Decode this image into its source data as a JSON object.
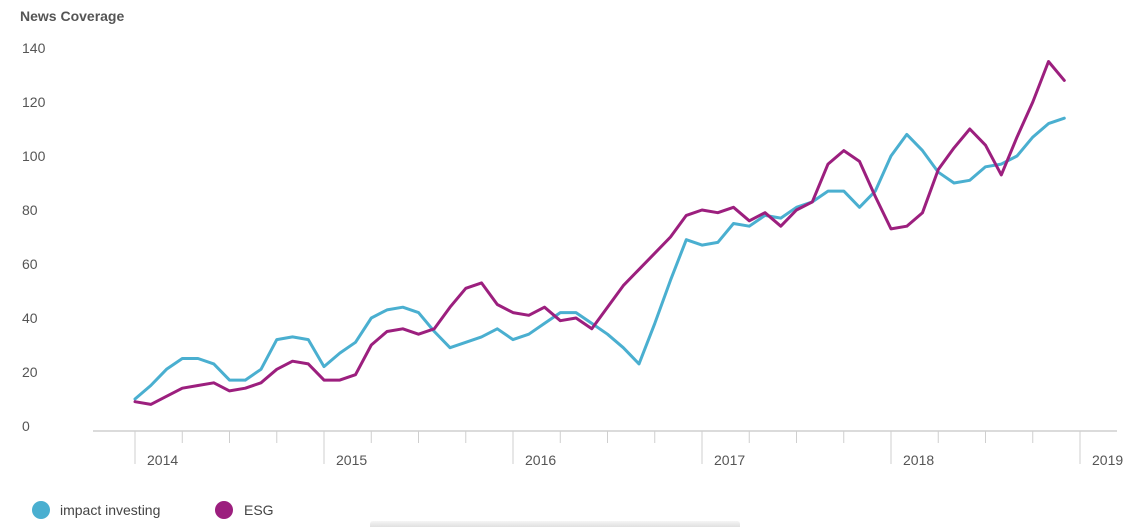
{
  "chart_data": {
    "type": "line",
    "ylabel": "News Coverage",
    "xlabel": "",
    "ylim": [
      0,
      140
    ],
    "yticks": [
      0,
      20,
      40,
      60,
      80,
      100,
      120,
      140
    ],
    "xlim": [
      2013.91,
      2019.0
    ],
    "xticks": [
      "2014",
      "2015",
      "2016",
      "2017",
      "2018",
      "2019"
    ],
    "grid": false,
    "legend_position": "bottom-left",
    "series": [
      {
        "name": "impact investing",
        "color": "#4aafd0",
        "x": [
          "2014-01",
          "2014-02",
          "2014-03",
          "2014-04",
          "2014-05",
          "2014-06",
          "2014-07",
          "2014-08",
          "2014-09",
          "2014-10",
          "2014-11",
          "2014-12",
          "2015-01",
          "2015-02",
          "2015-03",
          "2015-04",
          "2015-05",
          "2015-06",
          "2015-07",
          "2015-08",
          "2015-09",
          "2015-10",
          "2015-11",
          "2015-12",
          "2016-01",
          "2016-02",
          "2016-03",
          "2016-04",
          "2016-05",
          "2016-06",
          "2016-07",
          "2016-08",
          "2016-09",
          "2016-10",
          "2016-11",
          "2016-12",
          "2017-01",
          "2017-02",
          "2017-03",
          "2017-04",
          "2017-05",
          "2017-06",
          "2017-07",
          "2017-08",
          "2017-09",
          "2017-10",
          "2017-11",
          "2017-12",
          "2018-01",
          "2018-02",
          "2018-03",
          "2018-04",
          "2018-05",
          "2018-06",
          "2018-07",
          "2018-08",
          "2018-09",
          "2018-10",
          "2018-11",
          "2018-12"
        ],
        "values": [
          10,
          15,
          21,
          25,
          25,
          23,
          17,
          17,
          21,
          32,
          33,
          32,
          22,
          27,
          31,
          40,
          43,
          44,
          42,
          35,
          29,
          31,
          33,
          36,
          32,
          34,
          38,
          42,
          42,
          38,
          34,
          29,
          23,
          38,
          54,
          69,
          67,
          68,
          75,
          74,
          78,
          77,
          81,
          83,
          87,
          87,
          81,
          87,
          100,
          108,
          102,
          94,
          90,
          91,
          96,
          97,
          100,
          107,
          112,
          114
        ]
      },
      {
        "name": "ESG",
        "color": "#9c1f7e",
        "x": [
          "2014-01",
          "2014-02",
          "2014-03",
          "2014-04",
          "2014-05",
          "2014-06",
          "2014-07",
          "2014-08",
          "2014-09",
          "2014-10",
          "2014-11",
          "2014-12",
          "2015-01",
          "2015-02",
          "2015-03",
          "2015-04",
          "2015-05",
          "2015-06",
          "2015-07",
          "2015-08",
          "2015-09",
          "2015-10",
          "2015-11",
          "2015-12",
          "2016-01",
          "2016-02",
          "2016-03",
          "2016-04",
          "2016-05",
          "2016-06",
          "2016-07",
          "2016-08",
          "2016-09",
          "2016-10",
          "2016-11",
          "2016-12",
          "2017-01",
          "2017-02",
          "2017-03",
          "2017-04",
          "2017-05",
          "2017-06",
          "2017-07",
          "2017-08",
          "2017-09",
          "2017-10",
          "2017-11",
          "2017-12",
          "2018-01",
          "2018-02",
          "2018-03",
          "2018-04",
          "2018-05",
          "2018-06",
          "2018-07",
          "2018-08",
          "2018-09",
          "2018-10",
          "2018-11",
          "2018-12"
        ],
        "values": [
          9,
          8,
          11,
          14,
          15,
          16,
          13,
          14,
          16,
          21,
          24,
          23,
          17,
          17,
          19,
          30,
          35,
          36,
          34,
          36,
          44,
          51,
          53,
          45,
          42,
          41,
          44,
          39,
          40,
          36,
          44,
          52,
          58,
          64,
          70,
          78,
          80,
          79,
          81,
          76,
          79,
          74,
          80,
          83,
          97,
          102,
          98,
          85,
          73,
          74,
          79,
          95,
          103,
          110,
          104,
          93,
          107,
          120,
          135,
          128
        ]
      }
    ]
  }
}
